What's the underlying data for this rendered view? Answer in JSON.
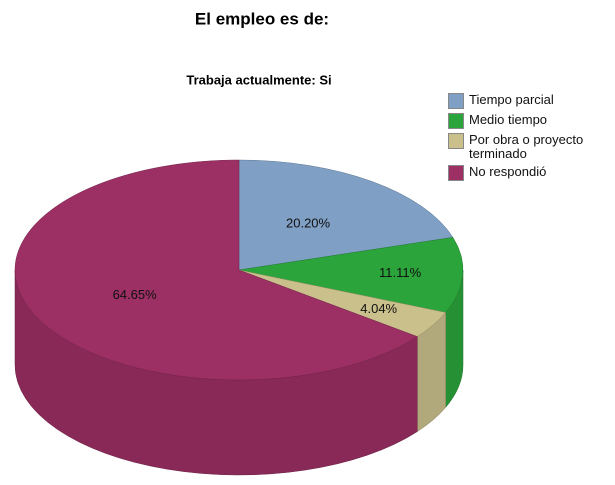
{
  "chart_data": {
    "type": "pie3d",
    "title": "El empleo es de:",
    "subtitle": "Trabaja actualmente: Si",
    "categories": [
      "Tiempo parcial",
      "Medio tiempo",
      "Por obra o proyecto terminado",
      "No respondió"
    ],
    "values": [
      20.2,
      11.11,
      4.04,
      64.65
    ],
    "value_labels": [
      "20.20%",
      "11.11%",
      "4.04%",
      "64.65%"
    ],
    "colors": [
      "#7f9fc4",
      "#2ba53b",
      "#c9c08c",
      "#9c2f63"
    ],
    "legend": "right"
  }
}
